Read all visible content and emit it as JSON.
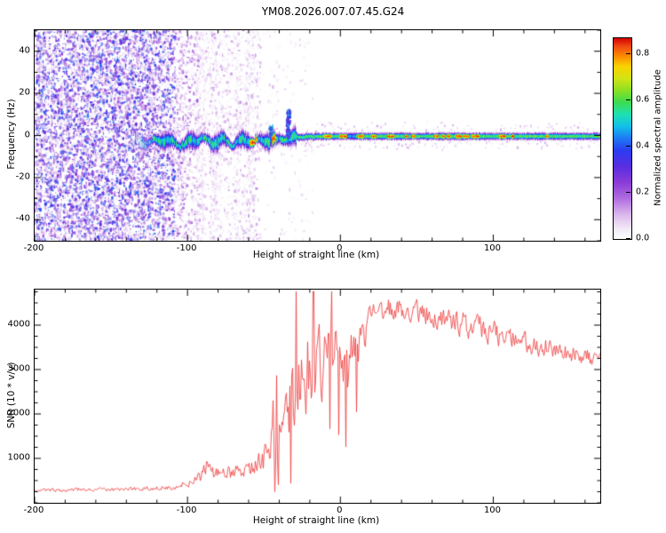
{
  "title": "YM08.2026.007.07.45.G24",
  "colormap": [
    {
      "t": 0.0,
      "c": "#ffffff"
    },
    {
      "t": 0.05,
      "c": "#f2eaf8"
    },
    {
      "t": 0.12,
      "c": "#dcb8ec"
    },
    {
      "t": 0.2,
      "c": "#b06ee0"
    },
    {
      "t": 0.28,
      "c": "#8a3cd6"
    },
    {
      "t": 0.36,
      "c": "#5a2ee0"
    },
    {
      "t": 0.44,
      "c": "#2b3cf0"
    },
    {
      "t": 0.5,
      "c": "#1e78f5"
    },
    {
      "t": 0.56,
      "c": "#12c0e8"
    },
    {
      "t": 0.62,
      "c": "#1ee0b4"
    },
    {
      "t": 0.68,
      "c": "#3cdc50"
    },
    {
      "t": 0.74,
      "c": "#8ce022"
    },
    {
      "t": 0.8,
      "c": "#d2e414"
    },
    {
      "t": 0.86,
      "c": "#fad200"
    },
    {
      "t": 0.91,
      "c": "#fa8c00"
    },
    {
      "t": 0.96,
      "c": "#f04814"
    },
    {
      "t": 1.0,
      "c": "#d40000"
    }
  ],
  "chart_data": [
    {
      "type": "heatmap",
      "title": "YM08.2026.007.07.45.G24",
      "xlabel": "Height of straight line (km)",
      "ylabel": "Frequency (Hz)",
      "xlim": [
        -200,
        170
      ],
      "ylim": [
        -50,
        50
      ],
      "xticks": [
        -200,
        -100,
        0,
        100
      ],
      "yticks": [
        -40,
        -20,
        0,
        20,
        40
      ],
      "grid": false,
      "colorbar": {
        "label": "Normalized spectral amplitude",
        "ticks": [
          0.0,
          0.2,
          0.4,
          0.6,
          0.8
        ],
        "range": [
          0,
          0.87
        ]
      },
      "noise_regions": [
        {
          "x_range": [
            -200,
            -108
          ],
          "count": 7200,
          "amp_range": [
            0.03,
            0.5
          ],
          "blue_specks": true,
          "note": "dense broadband purple speckle noise across all frequencies"
        },
        {
          "x_range": [
            -108,
            -92
          ],
          "count": 650,
          "amp_range": [
            0.02,
            0.26
          ],
          "note": "fading speckle band"
        },
        {
          "x_range": [
            -92,
            -52
          ],
          "count": 850,
          "amp_range": [
            0.02,
            0.18
          ],
          "note": "sparse speckle with faint vertical streaks"
        },
        {
          "x_range": [
            -52,
            -18
          ],
          "count": 130,
          "amp_range": [
            0.02,
            0.12
          ],
          "note": "nearly clear background"
        }
      ],
      "echo_centerline": [
        [
          -134,
          -2
        ],
        [
          -126,
          -3.5
        ],
        [
          -118,
          -1.5
        ],
        [
          -110,
          -3
        ],
        [
          -104,
          -4.5
        ],
        [
          -97,
          -2
        ],
        [
          -90,
          -1.5
        ],
        [
          -84,
          -3.5
        ],
        [
          -77,
          -2
        ],
        [
          -70,
          -3.8
        ],
        [
          -63,
          -1.8
        ],
        [
          -57,
          -3
        ],
        [
          -50,
          -1.5
        ],
        [
          -44,
          -2.5
        ],
        [
          -38,
          -1
        ],
        [
          -33,
          -2
        ],
        [
          -29,
          -0.5
        ],
        [
          0,
          -0.2
        ],
        [
          170,
          -0.2
        ]
      ],
      "echo": {
        "start_km": -134,
        "wiggle_end_km": -29,
        "core_amplitude": 0.64,
        "red_dash_amplitude": 0.92,
        "straight_center_hz": 0,
        "plume": {
          "km": -34,
          "top_hz": 13,
          "amplitude": 0.38,
          "note": "blue vertical plume above echo line"
        }
      }
    },
    {
      "type": "line",
      "xlabel": "Height of straight line (km)",
      "ylabel": "SNR (10 * v/v)",
      "xlim": [
        -200,
        170
      ],
      "ylim": [
        0,
        4800
      ],
      "xticks": [
        -200,
        -100,
        0,
        100
      ],
      "yticks": [
        1000,
        2000,
        3000,
        4000
      ],
      "grid": false,
      "series": [
        {
          "name": "SNR",
          "color": "#ef4040",
          "envelope_points": [
            [
              -200,
              280,
              70
            ],
            [
              -170,
              290,
              70
            ],
            [
              -148,
              300,
              75
            ],
            [
              -128,
              320,
              80
            ],
            [
              -112,
              340,
              95
            ],
            [
              -100,
              430,
              150
            ],
            [
              -93,
              540,
              210
            ],
            [
              -88,
              820,
              330
            ],
            [
              -83,
              640,
              240
            ],
            [
              -76,
              660,
              260
            ],
            [
              -68,
              710,
              290
            ],
            [
              -60,
              790,
              330
            ],
            [
              -53,
              910,
              430
            ],
            [
              -47,
              1120,
              660
            ],
            [
              -42,
              1520,
              960
            ],
            [
              -37,
              1900,
              1250
            ],
            [
              -32,
              2300,
              1450
            ],
            [
              -27,
              2620,
              1550
            ],
            [
              -21,
              2920,
              1550
            ],
            [
              -15,
              3120,
              1450
            ],
            [
              -10,
              3020,
              1350
            ],
            [
              -5,
              3120,
              1250
            ],
            [
              0,
              3220,
              1200
            ],
            [
              5,
              2920,
              1400
            ],
            [
              10,
              3320,
              1000
            ],
            [
              15,
              3820,
              700
            ],
            [
              20,
              4120,
              520
            ],
            [
              26,
              4320,
              430
            ],
            [
              35,
              4360,
              400
            ],
            [
              45,
              4310,
              420
            ],
            [
              55,
              4260,
              430
            ],
            [
              65,
              4110,
              450
            ],
            [
              75,
              4060,
              460
            ],
            [
              85,
              3960,
              480
            ],
            [
              95,
              3860,
              460
            ],
            [
              105,
              3760,
              430
            ],
            [
              115,
              3660,
              410
            ],
            [
              125,
              3560,
              400
            ],
            [
              135,
              3460,
              380
            ],
            [
              145,
              3400,
              360
            ],
            [
              155,
              3310,
              340
            ],
            [
              165,
              3260,
              330
            ],
            [
              170,
              3210,
              330
            ]
          ]
        }
      ]
    }
  ]
}
